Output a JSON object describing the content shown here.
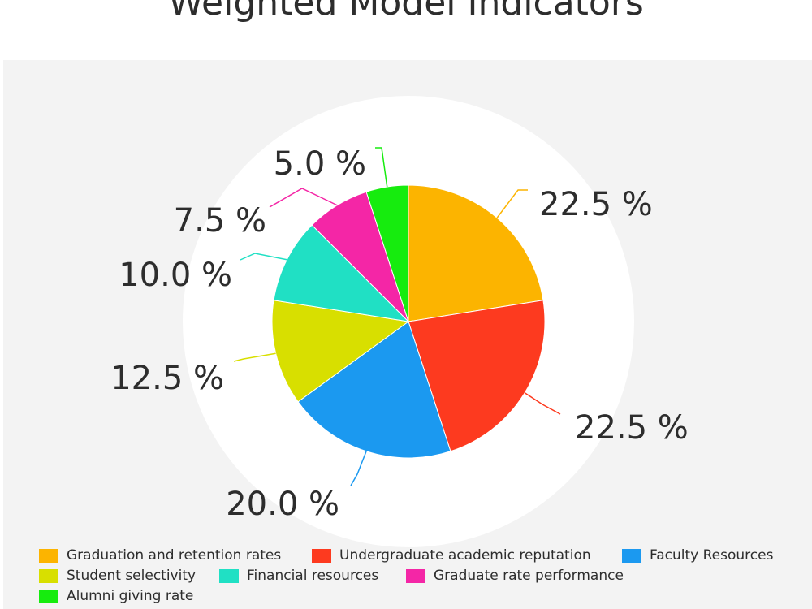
{
  "chart_data": {
    "type": "pie",
    "title": "Weighted Model Indicators",
    "categories": [
      "Graduation and retention rates",
      "Undergraduate academic reputation",
      "Faculty Resources",
      "Student selectivity",
      "Financial resources",
      "Graduate rate performance",
      "Alumni giving rate"
    ],
    "values": [
      22.5,
      22.5,
      20.0,
      12.5,
      10.0,
      7.5,
      5.0
    ],
    "value_labels": [
      "22.5 %",
      "22.5 %",
      "20.0 %",
      "12.5 %",
      "10.0 %",
      "7.5 %",
      "5.0 %"
    ],
    "colors": [
      "#fcb400",
      "#fd3a1f",
      "#1b99f0",
      "#d8df00",
      "#20e0c4",
      "#f426a6",
      "#16ec0e"
    ],
    "start_angle": "12 o'clock",
    "direction": "clockwise",
    "legend_position": "bottom"
  }
}
